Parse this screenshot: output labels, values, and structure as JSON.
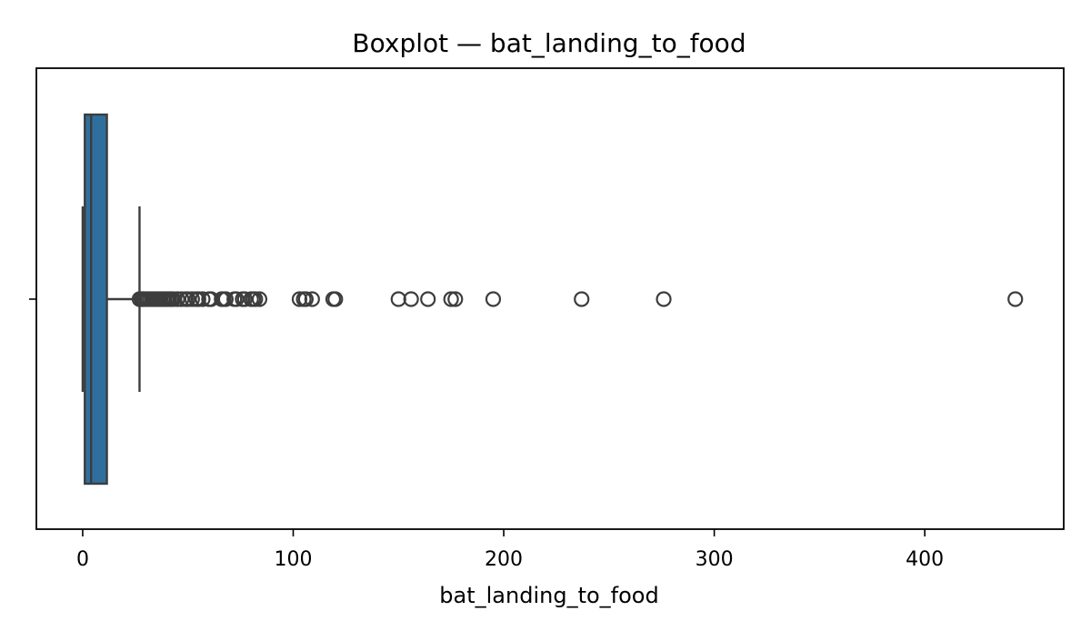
{
  "chart_data": {
    "type": "box",
    "title": "Boxplot — bat_landing_to_food",
    "xlabel": "bat_landing_to_food",
    "ylabel": "",
    "xlim": [
      -22,
      466
    ],
    "xticks": [
      0,
      100,
      200,
      300,
      400
    ],
    "xtick_labels": [
      "0",
      "100",
      "200",
      "300",
      "400"
    ],
    "orientation": "horizontal",
    "grid": false,
    "box": {
      "whisker_low": 0,
      "q1": 1,
      "median": 4,
      "q3": 11.5,
      "whisker_high": 27
    },
    "outliers": [
      27,
      28,
      28.5,
      29,
      30,
      31,
      32,
      33,
      34,
      35,
      36,
      37,
      38,
      39,
      40,
      41,
      42,
      43,
      45,
      47,
      49,
      50,
      52,
      54,
      55,
      57,
      60,
      61,
      66,
      67,
      68,
      72,
      73,
      76,
      77,
      80,
      81,
      82,
      84,
      103,
      105,
      106,
      109,
      119,
      120,
      150,
      156,
      164,
      175,
      177,
      195,
      237,
      276,
      443
    ],
    "colors": {
      "box_fill": "#2f6f9e",
      "line": "#3d3d3d",
      "outlier_edge": "#3d3d3d"
    }
  }
}
